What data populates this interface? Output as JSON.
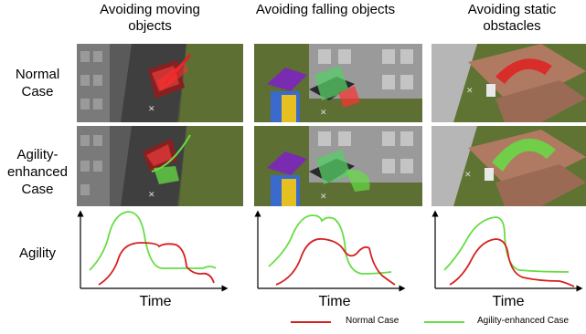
{
  "columns": [
    {
      "title": "Avoiding moving objects"
    },
    {
      "title": "Avoiding falling objects"
    },
    {
      "title": "Avoiding static obstacles"
    }
  ],
  "rows": {
    "normal": "Normal Case",
    "agility_enhanced": "Agility-enhanced Case",
    "agility": "Agility"
  },
  "plots": {
    "x_label": "Time",
    "y_label": "Agility"
  },
  "legend": {
    "normal": {
      "label": "Normal Case",
      "color": "#d62020"
    },
    "enhanced": {
      "label": "Agility-enhanced Case",
      "color": "#66dd44"
    }
  }
}
